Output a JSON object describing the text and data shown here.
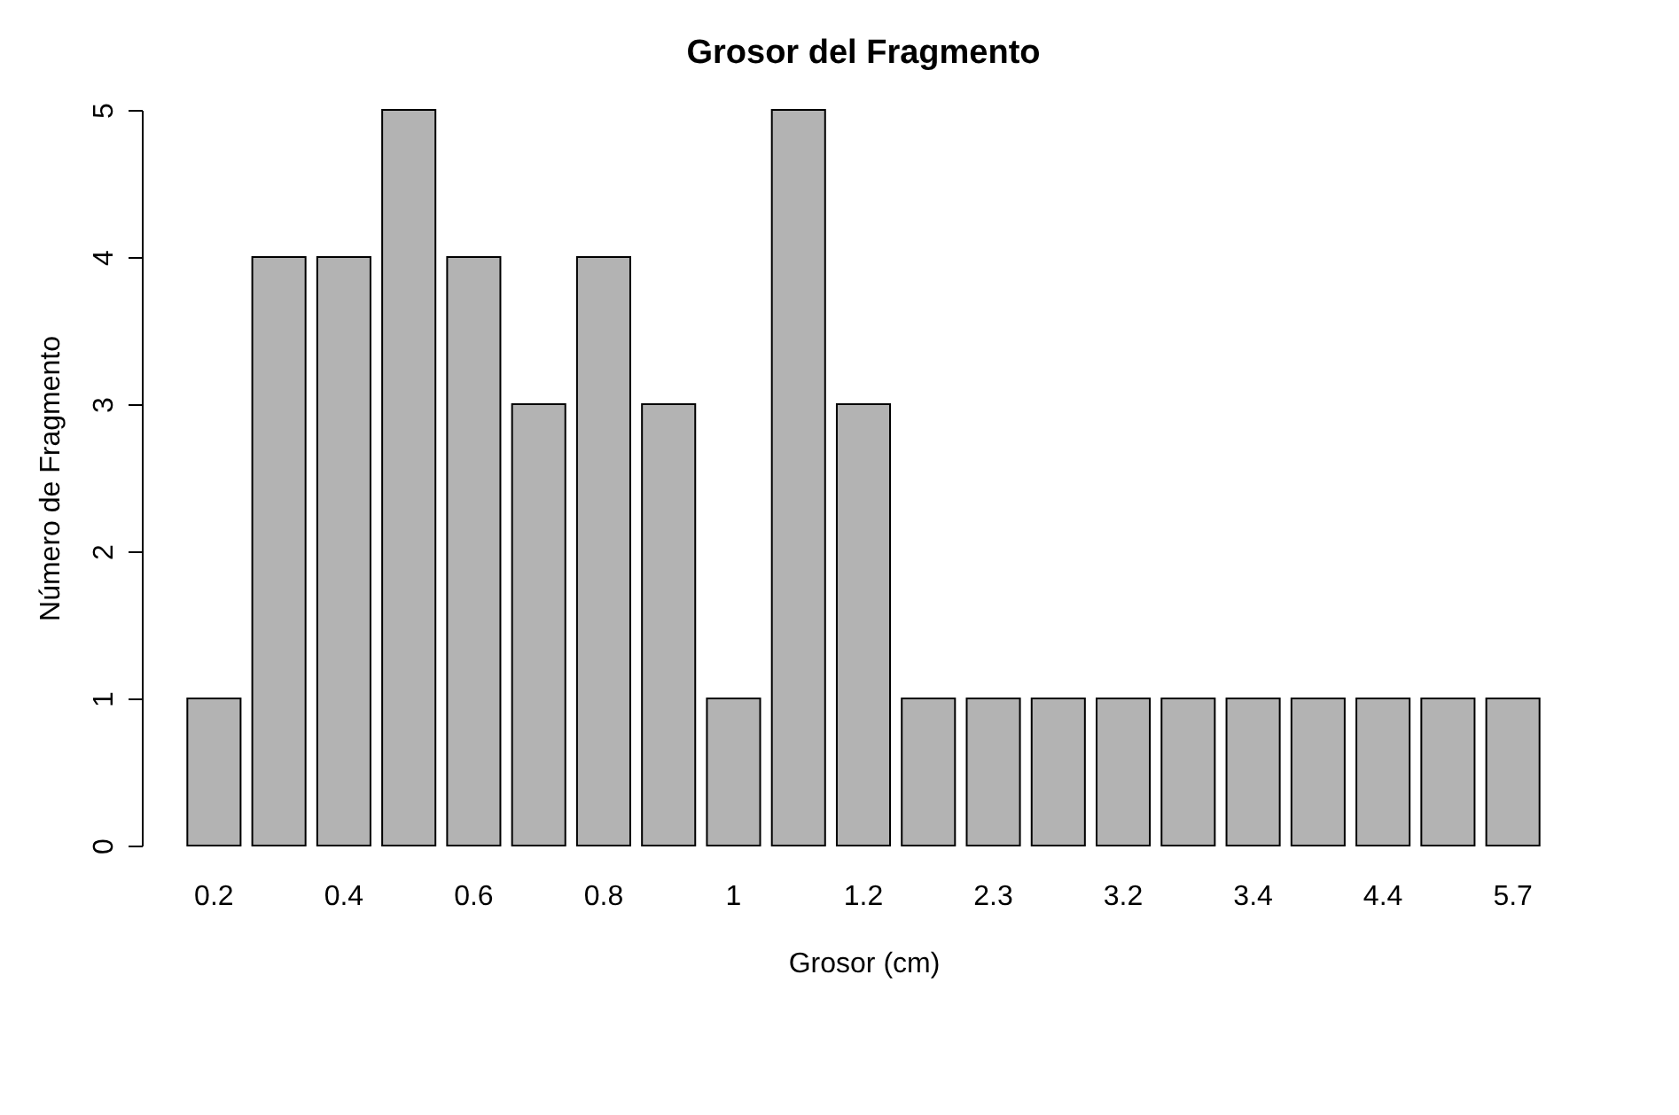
{
  "chart_data": {
    "type": "bar",
    "title": "Grosor del Fragmento",
    "xlabel": "Grosor (cm)",
    "ylabel": "Número de Fragmento",
    "categories": [
      "0.2",
      null,
      "0.4",
      null,
      "0.6",
      null,
      "0.8",
      null,
      "1",
      null,
      "1.2",
      null,
      "2.3",
      null,
      "3.2",
      null,
      "3.4",
      null,
      "4.4",
      null,
      "5.7"
    ],
    "values": [
      1,
      4,
      4,
      5,
      4,
      3,
      4,
      3,
      1,
      5,
      3,
      1,
      1,
      1,
      1,
      1,
      1,
      1,
      1,
      1,
      1
    ],
    "color": "#b3b3b3",
    "ylim": [
      0,
      5
    ],
    "yticks": [
      0,
      1,
      2,
      3,
      4,
      5
    ],
    "grid": false
  }
}
